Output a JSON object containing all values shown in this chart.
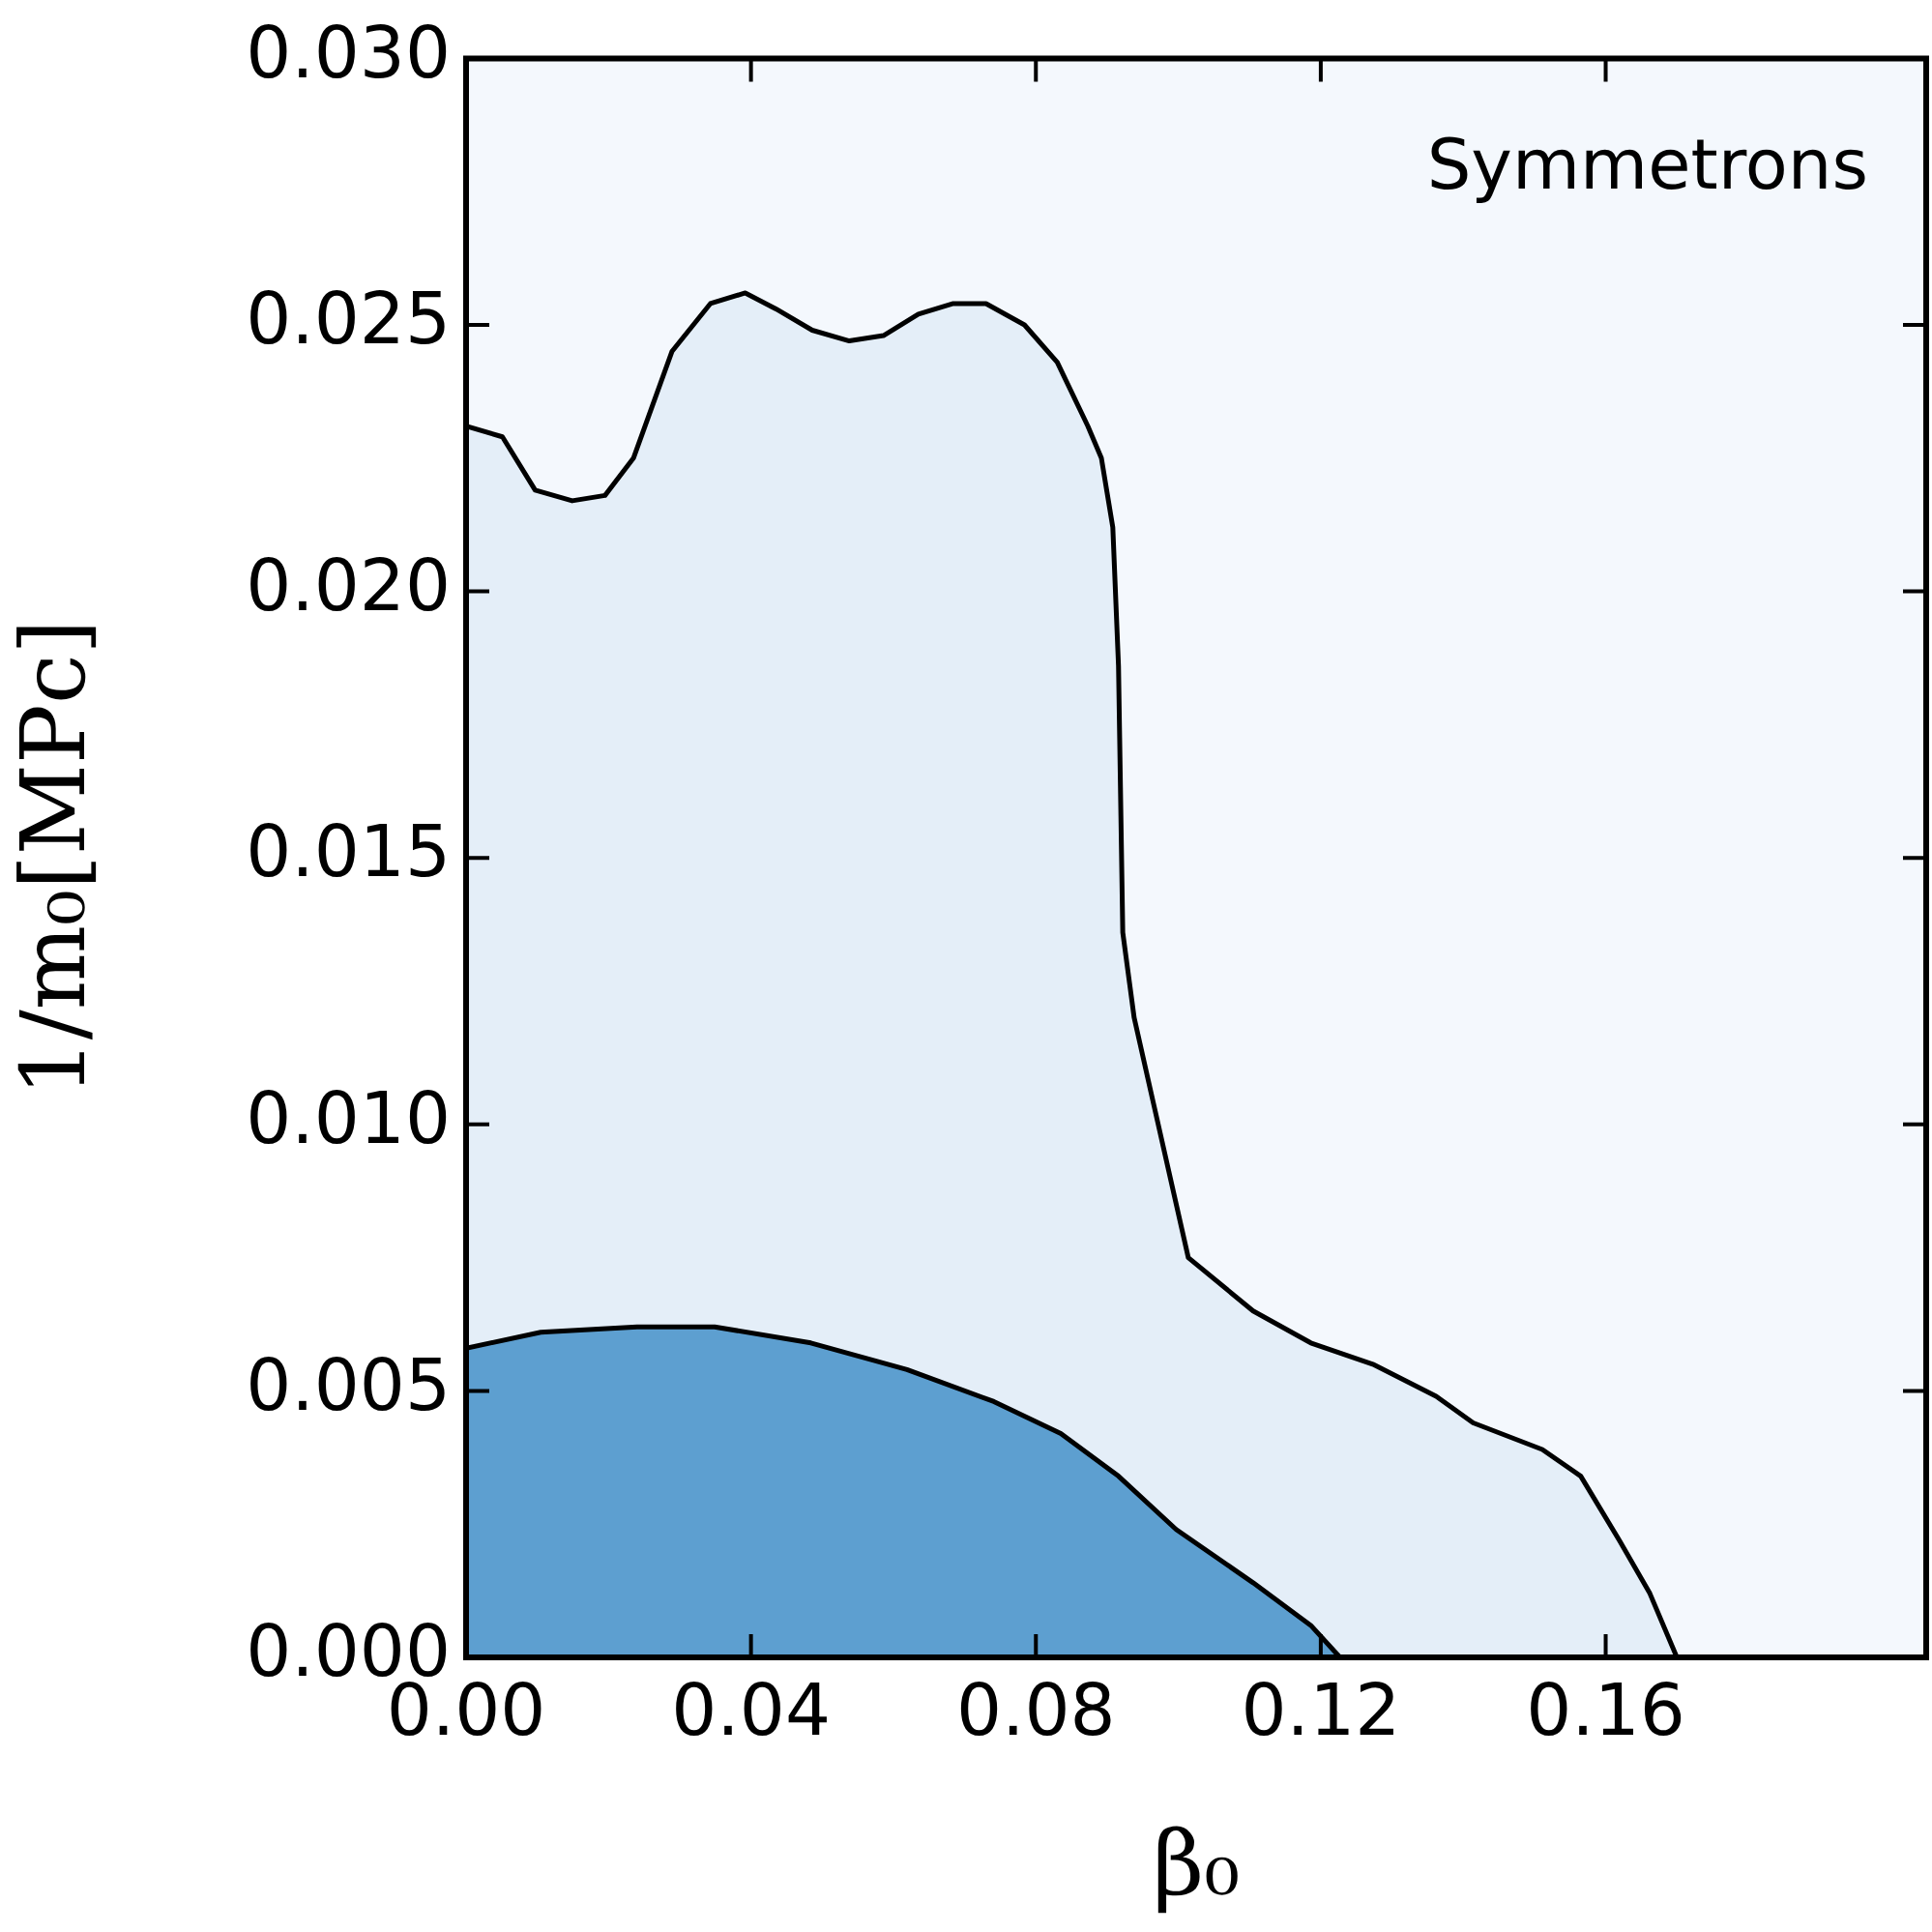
{
  "chart_data": {
    "type": "area",
    "xlabel": "β₀",
    "ylabel": "1/m₀[MPc]",
    "annotations": [
      "Symmetrons"
    ],
    "xlim": [
      0,
      0.205
    ],
    "xticks": [
      {
        "value": 0,
        "label": "0.00"
      },
      {
        "value": 0.04,
        "label": "0.04"
      },
      {
        "value": 0.08,
        "label": "0.08"
      },
      {
        "value": 0.12,
        "label": "0.12"
      },
      {
        "value": 0.16,
        "label": "0.16"
      }
    ],
    "ylim": [
      0,
      0.03
    ],
    "yticks": [
      {
        "value": 0,
        "label": "0.000"
      },
      {
        "value": 0.005,
        "label": "0.005"
      },
      {
        "value": 0.01,
        "label": "0.010"
      },
      {
        "value": 0.015,
        "label": "0.015"
      },
      {
        "value": 0.02,
        "label": "0.020"
      },
      {
        "value": 0.025,
        "label": "0.025"
      },
      {
        "value": 0.03,
        "label": "0.030"
      }
    ],
    "legend": false,
    "series": [
      {
        "color": "#e4eef8",
        "x": [
          0,
          0.0051,
          0.0097,
          0.0149,
          0.0195,
          0.0235,
          0.0289,
          0.0343,
          0.0392,
          0.0435,
          0.0486,
          0.0538,
          0.0586,
          0.0635,
          0.0684,
          0.073,
          0.0784,
          0.083,
          0.0873,
          0.0892,
          0.0908,
          0.0916,
          0.0922,
          0.0938,
          0.0965,
          0.1014,
          0.1105,
          0.1186,
          0.1273,
          0.1362,
          0.1414,
          0.1511,
          0.1565,
          0.1619,
          0.1662,
          0.17
        ],
        "values": [
          0.0231,
          0.0229,
          0.0219,
          0.0217,
          0.0218,
          0.0225,
          0.0245,
          0.0254,
          0.0256,
          0.0253,
          0.0249,
          0.0247,
          0.0248,
          0.0252,
          0.0254,
          0.0254,
          0.025,
          0.0243,
          0.0231,
          0.0225,
          0.0212,
          0.0186,
          0.0136,
          0.012,
          0.0104,
          0.0075,
          0.0065,
          0.0059,
          0.0055,
          0.0049,
          0.0044,
          0.0039,
          0.0034,
          0.0022,
          0.0012,
          0
        ]
      },
      {
        "color": "#5d9fd0",
        "x": [
          0,
          0.0105,
          0.024,
          0.0349,
          0.0484,
          0.0619,
          0.0741,
          0.0835,
          0.0916,
          0.0997,
          0.1105,
          0.1186,
          0.1227
        ],
        "values": [
          0.0058,
          0.0061,
          0.0062,
          0.0062,
          0.0059,
          0.0054,
          0.0048,
          0.0042,
          0.0034,
          0.0024,
          0.0014,
          0.0006,
          0
        ]
      }
    ]
  }
}
